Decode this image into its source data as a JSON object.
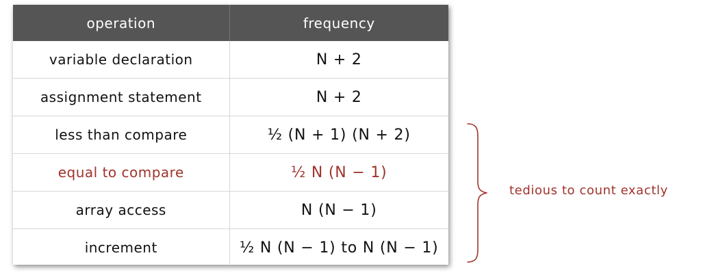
{
  "table": {
    "headers": [
      "operation",
      "frequency"
    ],
    "rows": [
      {
        "operation": "variable declaration",
        "frequency": "N + 2"
      },
      {
        "operation": "assignment statement",
        "frequency": "N + 2"
      },
      {
        "operation": "less than compare",
        "frequency": "½ (N + 1) (N + 2)"
      },
      {
        "operation": "equal to compare",
        "frequency": "½ N (N − 1)"
      },
      {
        "operation": "array access",
        "frequency": "N (N − 1)"
      },
      {
        "operation": "increment",
        "frequency": "½ N (N − 1) to N (N − 1)"
      }
    ],
    "highlighted_row": "equal to compare"
  },
  "annotation": {
    "text": "tedious to count exactly"
  },
  "colors": {
    "header_bg": "#555555",
    "highlight": "#a0332c",
    "brace": "#a0332c"
  }
}
